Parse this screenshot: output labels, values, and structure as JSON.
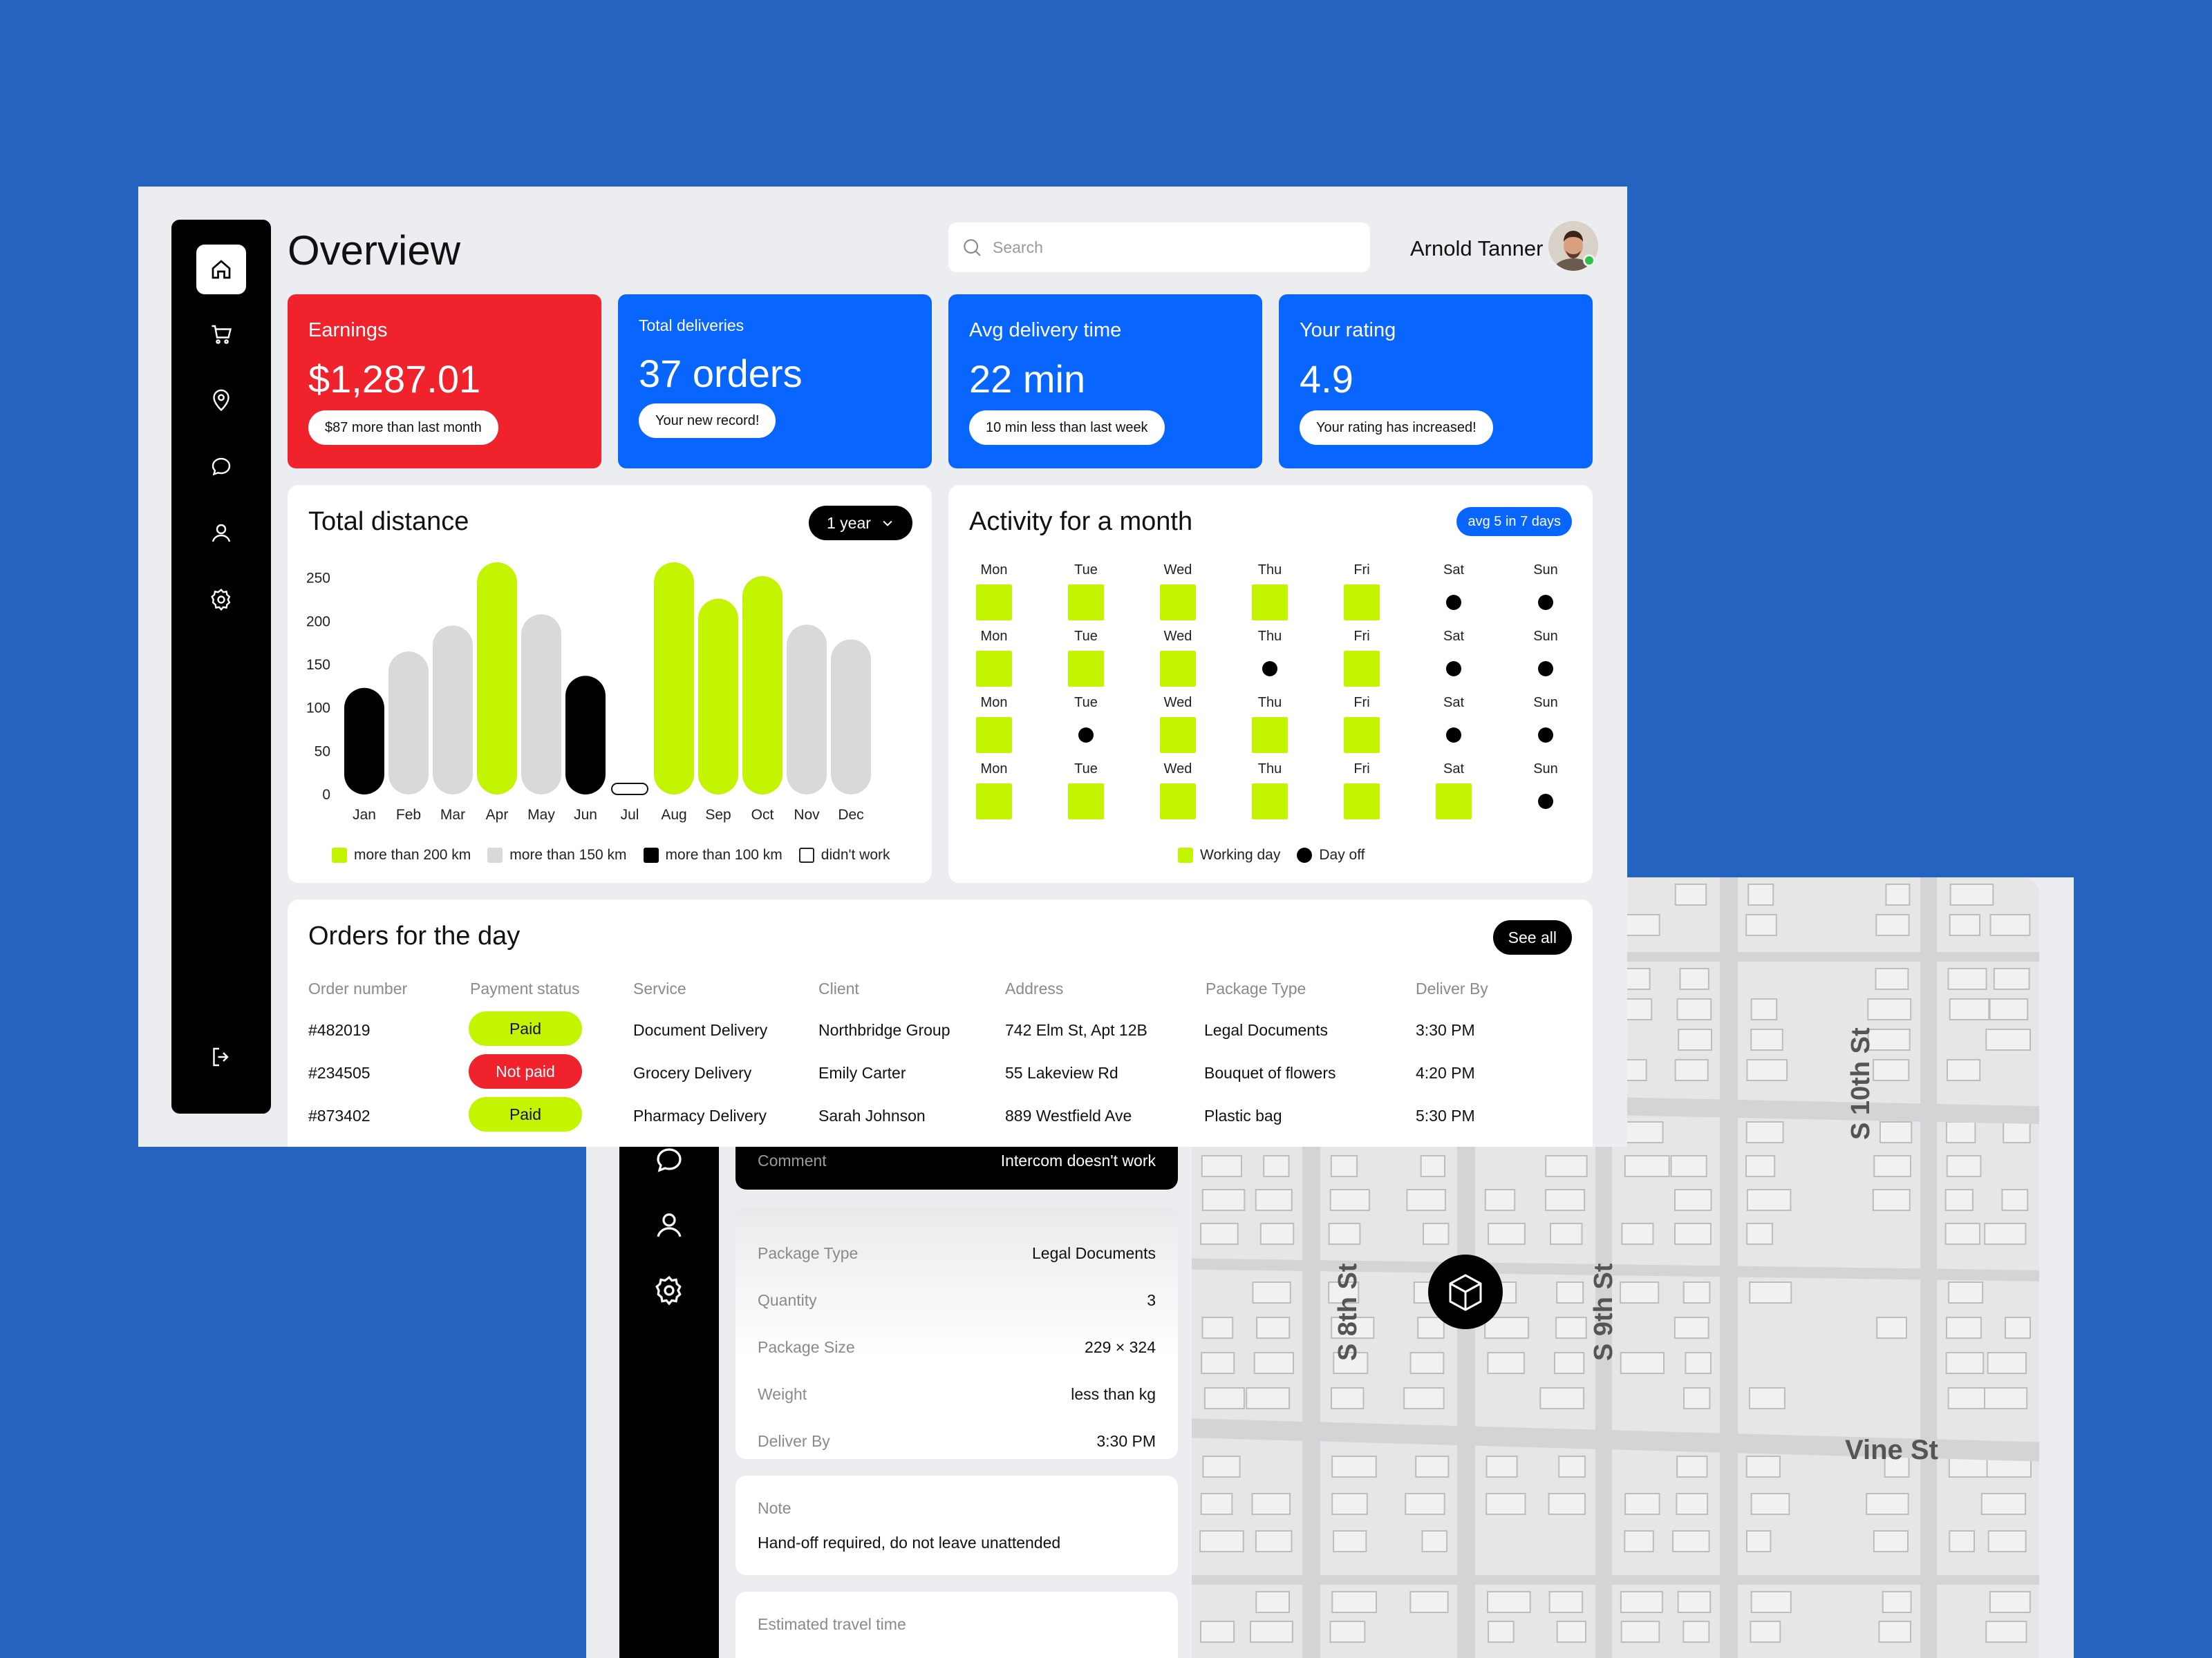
{
  "colors": {
    "red": "#f0232d",
    "blue": "#0866ff",
    "lime": "#c3f400",
    "grey": "#d9d9d9",
    "black": "#000000",
    "background": "#2563c0"
  },
  "sidebar": {
    "items": [
      "home-icon",
      "cart-icon",
      "location-pin-icon",
      "chat-icon",
      "user-icon",
      "gear-icon"
    ],
    "bottom": "logout-icon"
  },
  "header": {
    "title": "Overview",
    "search_placeholder": "Search",
    "user_name": "Arnold Tanner"
  },
  "stats": [
    {
      "label": "Earnings",
      "value": "$1,287.01",
      "note": "$87 more than last month",
      "color": "#f0232d"
    },
    {
      "label": "Total deliveries",
      "value": "37 orders",
      "note": "Your new record!",
      "color": "#0866ff"
    },
    {
      "label": "Avg delivery time",
      "value": "22 min",
      "note": "10 min less than last week",
      "color": "#0866ff"
    },
    {
      "label": "Your rating",
      "value": "4.9",
      "note": "Your rating has increased!",
      "color": "#0866ff"
    }
  ],
  "distance": {
    "title": "Total distance",
    "range": "1 year",
    "legend": [
      "more than 200 km",
      "more than 150 km",
      "more than 100 km",
      "didn't work"
    ]
  },
  "chart_data": {
    "type": "bar",
    "title": "Total distance",
    "categories": [
      "Jan",
      "Feb",
      "Mar",
      "Apr",
      "May",
      "Jun",
      "Jul",
      "Aug",
      "Sep",
      "Oct",
      "Nov",
      "Dec"
    ],
    "values": [
      123,
      165,
      195,
      268,
      208,
      137,
      0,
      268,
      226,
      252,
      196,
      179
    ],
    "bar_groups": [
      "more than 100 km",
      "more than 150 km",
      "more than 150 km",
      "more than 200 km",
      "more than 150 km",
      "more than 100 km",
      "didn't work",
      "more than 200 km",
      "more than 200 km",
      "more than 200 km",
      "more than 150 km",
      "more than 150 km"
    ],
    "yticks": [
      0,
      50,
      100,
      150,
      200,
      250
    ],
    "ylim": [
      0,
      268
    ],
    "grid": false,
    "legend_position": "bottom"
  },
  "activity": {
    "title": "Activity for a month",
    "badge": "avg 5 in 7 days",
    "days": [
      "Mon",
      "Tue",
      "Wed",
      "Thu",
      "Fri",
      "Sat",
      "Sun"
    ],
    "weeks": [
      [
        1,
        1,
        1,
        1,
        1,
        0,
        0
      ],
      [
        1,
        1,
        1,
        0,
        1,
        0,
        0
      ],
      [
        1,
        0,
        1,
        1,
        1,
        0,
        0
      ],
      [
        1,
        1,
        1,
        1,
        1,
        1,
        0
      ]
    ],
    "legend": [
      "Working day",
      "Day off"
    ]
  },
  "orders": {
    "title": "Orders for the day",
    "see_all": "See all",
    "columns": [
      "Order number",
      "Payment status",
      "Service",
      "Client",
      "Address",
      "Package Type",
      "Deliver By"
    ],
    "rows": [
      {
        "number": "#482019",
        "status": "Paid",
        "paid": true,
        "service": "Document Delivery",
        "client": "Northbridge Group",
        "address": "742 Elm St, Apt 12B",
        "package": "Legal Documents",
        "deliver_by": "3:30 PM"
      },
      {
        "number": "#234505",
        "status": "Not paid",
        "paid": false,
        "service": "Grocery Delivery",
        "client": "Emily Carter",
        "address": "55 Lakeview Rd",
        "package": "Bouquet of flowers",
        "deliver_by": "4:20 PM"
      },
      {
        "number": "#873402",
        "status": "Paid",
        "paid": true,
        "service": "Pharmacy Delivery",
        "client": "Sarah Johnson",
        "address": "889 Westfield Ave",
        "package": "Plastic bag",
        "deliver_by": "5:30 PM"
      }
    ]
  },
  "order_details": {
    "comment_label": "Comment",
    "comment_value": "Intercom doesn't work",
    "rows": [
      {
        "label": "Package Type",
        "value": "Legal Documents"
      },
      {
        "label": "Quantity",
        "value": "3"
      },
      {
        "label": "Package Size",
        "value": "229 × 324"
      },
      {
        "label": "Weight",
        "value": "less than kg"
      },
      {
        "label": "Deliver By",
        "value": "3:30 PM"
      }
    ],
    "note_label": "Note",
    "note_text": "Hand-off required, do not leave unattended",
    "travel_label": "Estimated travel time"
  },
  "map": {
    "streets": [
      "S 10th St",
      "S 8th St",
      "S 9th St",
      "Vine St"
    ],
    "marker_icon": "package-icon",
    "locate_icon": "crosshair-icon"
  }
}
